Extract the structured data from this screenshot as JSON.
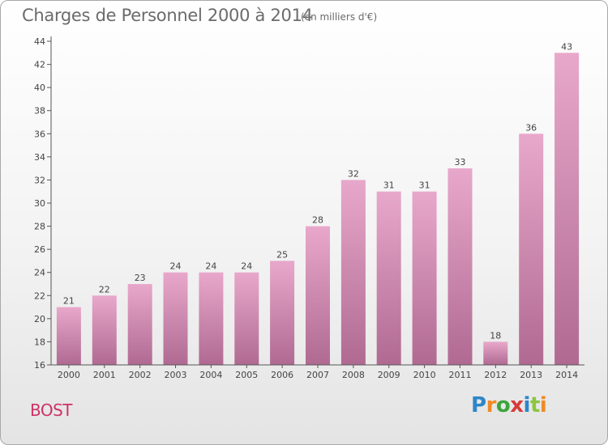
{
  "header": {
    "title": "Charges de Personnel 2000 à 2014",
    "subtitle": "(en milliers d'€)"
  },
  "commune": "BOST",
  "logo": {
    "text": "Proxiti",
    "letters": [
      {
        "ch": "P",
        "color": "#2e86c8"
      },
      {
        "ch": "r",
        "color": "#f08a24"
      },
      {
        "ch": "o",
        "color": "#3ba53b"
      },
      {
        "ch": "x",
        "color": "#d63a3a"
      },
      {
        "ch": "i",
        "color": "#2e86c8"
      },
      {
        "ch": "t",
        "color": "#8cc63f"
      },
      {
        "ch": "i",
        "color": "#f08a24"
      }
    ]
  },
  "colors": {
    "bar_top": "#e8a8cb",
    "bar_bottom": "#b06a92",
    "axis": "#555555",
    "grid": "#cccccc"
  },
  "chart_data": {
    "type": "bar",
    "categories": [
      "2000",
      "2001",
      "2002",
      "2003",
      "2004",
      "2005",
      "2006",
      "2007",
      "2008",
      "2009",
      "2010",
      "2011",
      "2012",
      "2013",
      "2014"
    ],
    "values": [
      21,
      22,
      23,
      24,
      24,
      24,
      25,
      28,
      32,
      31,
      31,
      33,
      18,
      36,
      43
    ],
    "ylim": [
      16,
      44
    ],
    "yticks": [
      16,
      18,
      20,
      22,
      24,
      26,
      28,
      30,
      32,
      34,
      36,
      38,
      40,
      42,
      44
    ],
    "data_labels": true,
    "grid": false,
    "legend": "none"
  }
}
